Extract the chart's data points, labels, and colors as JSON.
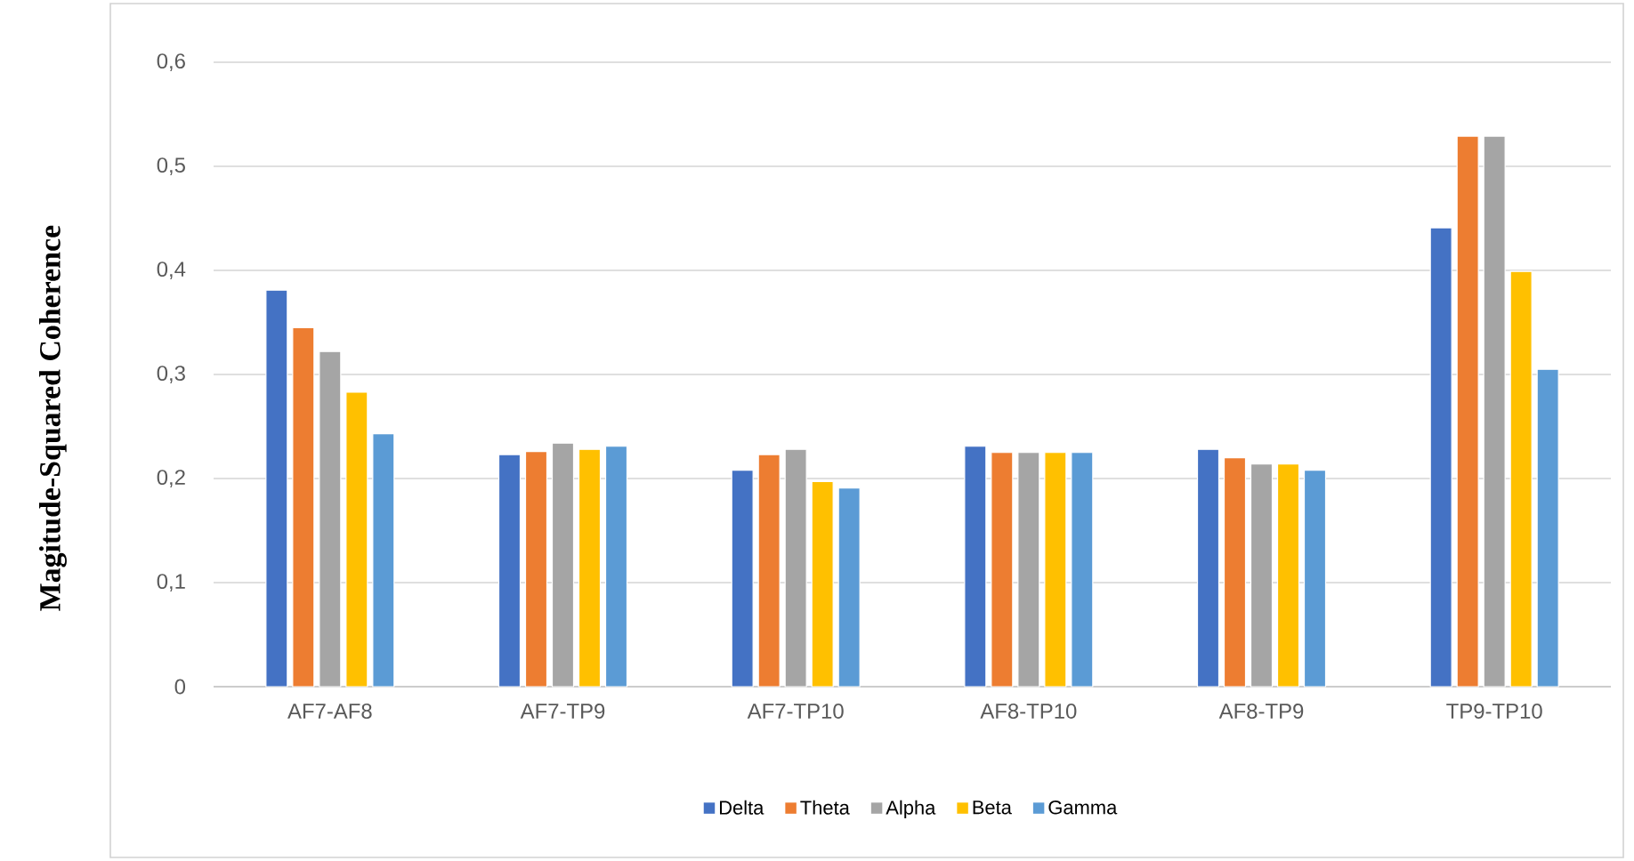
{
  "chart_data": {
    "type": "bar",
    "ylabel": "Magitude-Squared Coherence",
    "categories": [
      "AF7-AF8",
      "AF7-TP9",
      "AF7-TP10",
      "AF8-TP10",
      "AF8-TP9",
      "TP9-TP10"
    ],
    "series": [
      {
        "name": "Delta",
        "color": "#4472c4",
        "values": [
          0.381,
          0.223,
          0.208,
          0.231,
          0.228,
          0.441
        ]
      },
      {
        "name": "Theta",
        "color": "#ed7d31",
        "values": [
          0.345,
          0.226,
          0.223,
          0.225,
          0.22,
          0.529
        ]
      },
      {
        "name": "Alpha",
        "color": "#a5a5a5",
        "values": [
          0.322,
          0.234,
          0.228,
          0.225,
          0.214,
          0.529
        ]
      },
      {
        "name": "Beta",
        "color": "#ffc000",
        "values": [
          0.283,
          0.228,
          0.197,
          0.225,
          0.214,
          0.399
        ]
      },
      {
        "name": "Gamma",
        "color": "#5b9bd5",
        "values": [
          0.243,
          0.231,
          0.191,
          0.225,
          0.208,
          0.305
        ]
      }
    ],
    "ylim": [
      0,
      0.6
    ],
    "yticks": [
      0,
      {
        "value": 0.1,
        "label": "0,1"
      },
      {
        "value": 0.2,
        "label": "0,2"
      },
      {
        "value": 0.3,
        "label": "0,3"
      },
      {
        "value": 0.4,
        "label": "0,4"
      },
      {
        "value": 0.5,
        "label": "0,5"
      },
      {
        "value": 0.6,
        "label": "0,6"
      }
    ],
    "grid": "y",
    "legend": "bottom"
  }
}
